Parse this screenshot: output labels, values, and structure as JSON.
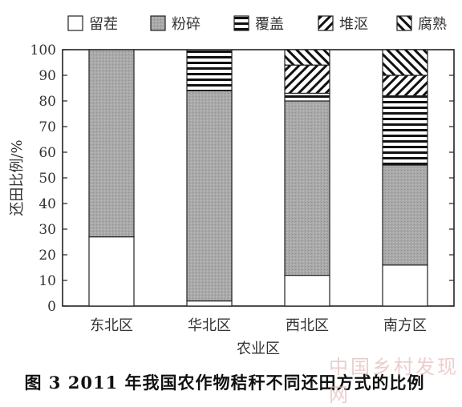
{
  "caption": "图 3  2011 年我国农作物秸秆不同还田方式的比例",
  "watermark": "中国乡村发现网",
  "chart_data": {
    "type": "bar",
    "stacked": true,
    "title": "",
    "xlabel": "农业区",
    "ylabel": "还田比例/%",
    "ylim": [
      0,
      100
    ],
    "yticks": [
      0,
      10,
      20,
      30,
      40,
      50,
      60,
      70,
      80,
      90,
      100
    ],
    "grid": false,
    "legend_position": "top",
    "categories": [
      "东北区",
      "华北区",
      "西北区",
      "南方区"
    ],
    "series": [
      {
        "name": "留茬",
        "pattern": "blank",
        "values": [
          27,
          2,
          12,
          16
        ]
      },
      {
        "name": "粉碎",
        "pattern": "gray",
        "values": [
          73,
          82,
          68,
          39
        ]
      },
      {
        "name": "覆盖",
        "pattern": "horizontal",
        "values": [
          0,
          16,
          3,
          27
        ]
      },
      {
        "name": "堆沤",
        "pattern": "diagonal",
        "values": [
          0,
          0,
          11,
          8
        ]
      },
      {
        "name": "腐熟",
        "pattern": "backdiagonal",
        "values": [
          0,
          0,
          6,
          10
        ]
      }
    ]
  }
}
